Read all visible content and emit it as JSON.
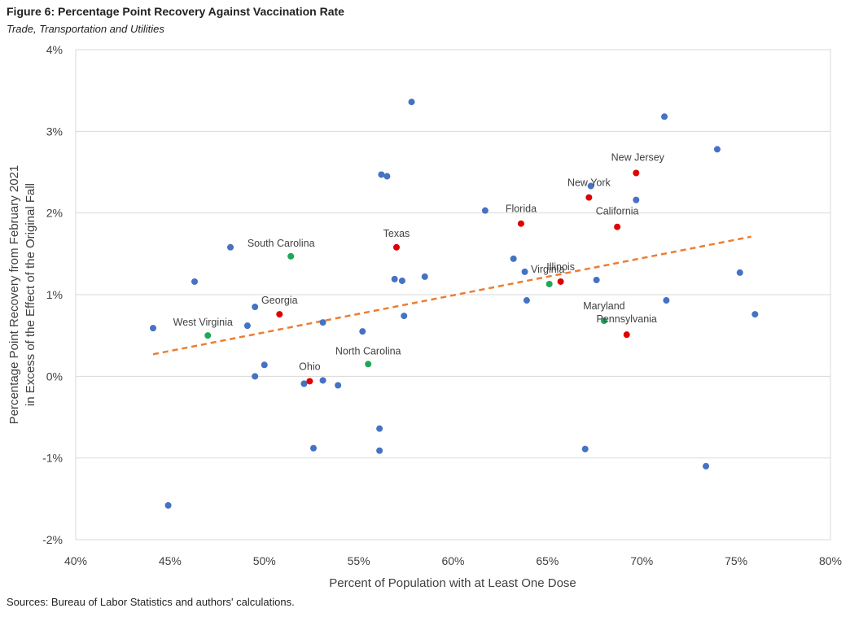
{
  "title": "Figure 6: Percentage Point Recovery Against Vaccination Rate",
  "subtitle": "Trade, Transportation and Utilities",
  "source": "Sources: Bureau of Labor Statistics and authors' calculations.",
  "colors": {
    "other": "#4472C4",
    "red": "#E00000",
    "green": "#1FA65A",
    "trend": "#ED7D31",
    "grid": "#D9D9D9"
  },
  "chart_data": {
    "type": "scatter",
    "xlabel": "Percent of Population with at Least One Dose",
    "ylabel_lines": [
      "Percentage Point Recovery from February 2021",
      "in Excess of the Effect of the Original Fall"
    ],
    "xlim": [
      40,
      80
    ],
    "ylim": [
      -2,
      4
    ],
    "x_ticks": [
      40,
      45,
      50,
      55,
      60,
      65,
      70,
      75,
      80
    ],
    "y_ticks": [
      -2,
      -1,
      0,
      1,
      2,
      3,
      4
    ],
    "x_tick_labels": [
      "40%",
      "45%",
      "50%",
      "55%",
      "60%",
      "65%",
      "70%",
      "75%",
      "80%"
    ],
    "y_tick_labels": [
      "-2%",
      "-1%",
      "0%",
      "1%",
      "2%",
      "3%",
      "4%"
    ],
    "grid": "horizontal",
    "trendline": {
      "x": [
        44.1,
        75.8
      ],
      "y": [
        0.27,
        1.71
      ]
    },
    "points": [
      {
        "x": 44.1,
        "y": 0.59,
        "group": "other"
      },
      {
        "x": 44.9,
        "y": -1.58,
        "group": "other"
      },
      {
        "x": 46.3,
        "y": 1.16,
        "group": "other"
      },
      {
        "x": 48.2,
        "y": 1.58,
        "group": "other"
      },
      {
        "x": 49.1,
        "y": 0.62,
        "group": "other"
      },
      {
        "x": 49.5,
        "y": 0.85,
        "group": "other"
      },
      {
        "x": 49.5,
        "y": 0.0,
        "group": "other"
      },
      {
        "x": 50.0,
        "y": 0.14,
        "group": "other"
      },
      {
        "x": 52.1,
        "y": -0.09,
        "group": "other"
      },
      {
        "x": 52.6,
        "y": -0.88,
        "group": "other"
      },
      {
        "x": 53.1,
        "y": 0.66,
        "group": "other"
      },
      {
        "x": 53.1,
        "y": -0.05,
        "group": "other"
      },
      {
        "x": 53.9,
        "y": -0.11,
        "group": "other"
      },
      {
        "x": 55.2,
        "y": 0.55,
        "group": "other"
      },
      {
        "x": 56.1,
        "y": -0.64,
        "group": "other"
      },
      {
        "x": 56.1,
        "y": -0.91,
        "group": "other"
      },
      {
        "x": 56.2,
        "y": 2.47,
        "group": "other"
      },
      {
        "x": 56.5,
        "y": 2.45,
        "group": "other"
      },
      {
        "x": 56.9,
        "y": 1.19,
        "group": "other"
      },
      {
        "x": 57.3,
        "y": 1.17,
        "group": "other"
      },
      {
        "x": 57.4,
        "y": 0.74,
        "group": "other"
      },
      {
        "x": 57.8,
        "y": 3.36,
        "group": "other"
      },
      {
        "x": 58.5,
        "y": 1.22,
        "group": "other"
      },
      {
        "x": 61.7,
        "y": 2.03,
        "group": "other"
      },
      {
        "x": 63.2,
        "y": 1.44,
        "group": "other"
      },
      {
        "x": 63.8,
        "y": 1.28,
        "group": "other"
      },
      {
        "x": 63.9,
        "y": 0.93,
        "group": "other"
      },
      {
        "x": 67.0,
        "y": -0.89,
        "group": "other"
      },
      {
        "x": 67.3,
        "y": 2.33,
        "group": "other"
      },
      {
        "x": 67.6,
        "y": 1.18,
        "group": "other"
      },
      {
        "x": 69.7,
        "y": 2.16,
        "group": "other"
      },
      {
        "x": 71.2,
        "y": 3.18,
        "group": "other"
      },
      {
        "x": 71.3,
        "y": 0.93,
        "group": "other"
      },
      {
        "x": 73.4,
        "y": -1.1,
        "group": "other"
      },
      {
        "x": 74.0,
        "y": 2.78,
        "group": "other"
      },
      {
        "x": 75.2,
        "y": 1.27,
        "group": "other"
      },
      {
        "x": 76.0,
        "y": 0.76,
        "group": "other"
      },
      {
        "x": 47.0,
        "y": 0.5,
        "group": "green",
        "label": "West Virginia",
        "lx": -6,
        "ly": -12,
        "anchor": "middle"
      },
      {
        "x": 51.4,
        "y": 1.47,
        "group": "green",
        "label": "South Carolina",
        "lx": -12,
        "ly": -12,
        "anchor": "middle"
      },
      {
        "x": 55.5,
        "y": 0.15,
        "group": "green",
        "label": "North Carolina",
        "lx": 0,
        "ly": -12,
        "anchor": "middle"
      },
      {
        "x": 65.1,
        "y": 1.13,
        "group": "green",
        "label": "Virginia",
        "lx": -2,
        "ly": -14,
        "anchor": "middle"
      },
      {
        "x": 68.0,
        "y": 0.68,
        "group": "green",
        "label": "Maryland",
        "lx": 0,
        "ly": -14,
        "anchor": "middle"
      },
      {
        "x": 50.8,
        "y": 0.76,
        "group": "red",
        "label": "Georgia",
        "lx": 0,
        "ly": -13,
        "anchor": "middle"
      },
      {
        "x": 52.4,
        "y": -0.06,
        "group": "red",
        "label": "Ohio",
        "lx": 0,
        "ly": -14,
        "anchor": "middle"
      },
      {
        "x": 57.0,
        "y": 1.58,
        "group": "red",
        "label": "Texas",
        "lx": 0,
        "ly": -13,
        "anchor": "middle"
      },
      {
        "x": 63.6,
        "y": 1.87,
        "group": "red",
        "label": "Florida",
        "lx": 0,
        "ly": -14,
        "anchor": "middle"
      },
      {
        "x": 65.7,
        "y": 1.16,
        "group": "red",
        "label": "Illinois",
        "lx": 0,
        "ly": -14,
        "anchor": "middle"
      },
      {
        "x": 67.2,
        "y": 2.19,
        "group": "red",
        "label": "New York",
        "lx": 0,
        "ly": -14,
        "anchor": "middle"
      },
      {
        "x": 68.7,
        "y": 1.83,
        "group": "red",
        "label": "California",
        "lx": 0,
        "ly": -15,
        "anchor": "middle"
      },
      {
        "x": 69.2,
        "y": 0.51,
        "group": "red",
        "label": "Pennsylvania",
        "lx": 0,
        "ly": -15,
        "anchor": "middle"
      },
      {
        "x": 69.7,
        "y": 2.49,
        "group": "red",
        "label": "New Jersey",
        "lx": 2,
        "ly": -15,
        "anchor": "middle"
      }
    ]
  }
}
